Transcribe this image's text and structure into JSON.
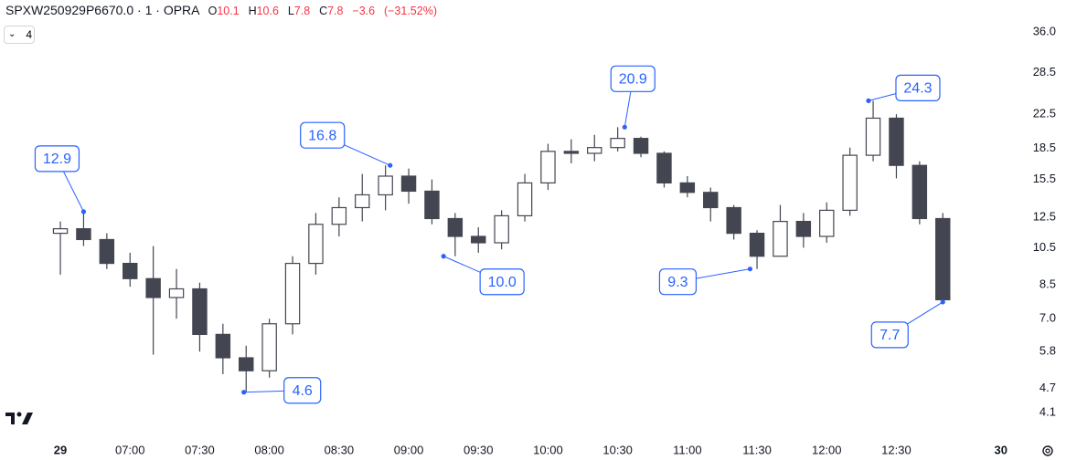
{
  "header": {
    "symbol": "SPXW250929P6670.0",
    "interval": "1",
    "exchange": "OPRA",
    "letters": [
      "O",
      "H",
      "L",
      "C"
    ],
    "open": 10.1,
    "high": 10.6,
    "low": 7.8,
    "close": 7.8,
    "change": {
      "value": -3.6,
      "label": "−3.6"
    },
    "change_percent": {
      "value": -31.52,
      "label": "(−31.52%)"
    }
  },
  "toolbar": {
    "indicators": 4
  },
  "chart_data": {
    "type": "candlestick",
    "color": "#434651",
    "x": [
      390,
      400,
      410,
      420,
      430,
      440,
      450,
      460,
      470,
      480,
      490,
      500,
      510,
      520,
      530,
      540,
      550,
      560,
      570,
      580,
      590,
      600,
      610,
      620,
      630,
      640,
      650,
      660,
      670,
      680,
      690,
      700,
      710,
      720,
      730,
      740,
      750,
      760,
      770
    ],
    "open": [
      11.4,
      11.7,
      11.0,
      9.6,
      8.8,
      7.9,
      8.3,
      6.4,
      5.6,
      5.2,
      6.8,
      9.6,
      12.0,
      13.2,
      14.2,
      15.8,
      14.5,
      12.4,
      11.2,
      10.8,
      12.6,
      15.2,
      18.2,
      18.0,
      18.6,
      19.6,
      18.0,
      15.2,
      14.4,
      13.2,
      11.4,
      10.0,
      12.2,
      11.2,
      13.0,
      17.8,
      22.0,
      16.8,
      12.4
    ],
    "high": [
      12.2,
      12.9,
      11.4,
      10.2,
      10.6,
      9.3,
      8.6,
      6.8,
      6.0,
      7.0,
      10.0,
      12.8,
      14.0,
      16.0,
      16.8,
      16.5,
      15.5,
      12.8,
      11.8,
      13.0,
      16.0,
      19.0,
      19.5,
      20.0,
      20.9,
      19.8,
      18.2,
      15.8,
      14.8,
      13.4,
      11.6,
      13.4,
      12.8,
      13.6,
      18.6,
      24.3,
      22.5,
      17.2,
      12.8
    ],
    "low": [
      9.0,
      10.6,
      9.3,
      8.4,
      5.7,
      7.0,
      5.8,
      5.1,
      4.6,
      5.0,
      6.4,
      9.0,
      11.2,
      12.2,
      13.0,
      13.5,
      12.0,
      10.0,
      10.2,
      10.4,
      12.2,
      14.6,
      17.0,
      17.2,
      18.2,
      17.6,
      14.8,
      14.0,
      12.2,
      11.0,
      9.3,
      10.0,
      10.5,
      10.8,
      12.6,
      17.2,
      15.6,
      12.0,
      7.7
    ],
    "close": [
      11.7,
      11.0,
      9.6,
      8.8,
      7.9,
      8.3,
      6.4,
      5.6,
      5.2,
      6.8,
      9.6,
      12.0,
      13.2,
      14.2,
      15.8,
      14.5,
      12.4,
      11.2,
      10.8,
      12.6,
      15.2,
      18.2,
      18.0,
      18.6,
      19.6,
      18.0,
      15.2,
      14.4,
      13.2,
      11.4,
      10.0,
      12.2,
      11.2,
      13.0,
      17.8,
      22.0,
      16.8,
      12.4,
      7.8
    ],
    "xlim": [
      364,
      801
    ],
    "xticks": [
      {
        "value": 390,
        "label": "29"
      },
      {
        "value": 420,
        "label": "07:00"
      },
      {
        "value": 450,
        "label": "07:30"
      },
      {
        "value": 480,
        "label": "08:00"
      },
      {
        "value": 510,
        "label": "08:30"
      },
      {
        "value": 540,
        "label": "09:00"
      },
      {
        "value": 570,
        "label": "09:30"
      },
      {
        "value": 600,
        "label": "10:00"
      },
      {
        "value": 630,
        "label": "10:30"
      },
      {
        "value": 660,
        "label": "11:00"
      },
      {
        "value": 690,
        "label": "11:30"
      },
      {
        "value": 720,
        "label": "12:00"
      },
      {
        "value": 750,
        "label": "12:30"
      },
      {
        "value": 795,
        "label": "30"
      }
    ],
    "ylim": [
      3.54,
      43.2
    ],
    "log_scale": true,
    "grid": false,
    "yticks": [
      4.1,
      4.7,
      5.8,
      {
        "value": 7,
        "label": "7.0"
      },
      8.5,
      10.5,
      12.5,
      15.5,
      18.5,
      22.5,
      28.5,
      {
        "value": 36,
        "label": "36.0"
      }
    ],
    "annotations": {
      "color": "#2962ff",
      "x": [
        400,
        532,
        469,
        555,
        633,
        687,
        738,
        770
      ],
      "values": [
        12.9,
        16.8,
        4.6,
        10,
        20.9,
        9.3,
        24.3,
        7.7
      ],
      "value_labels": [
        "12.9",
        "16.8",
        "4.6",
        "10.0",
        "20.9",
        "9.3",
        "24.3",
        "7.7"
      ]
    }
  }
}
